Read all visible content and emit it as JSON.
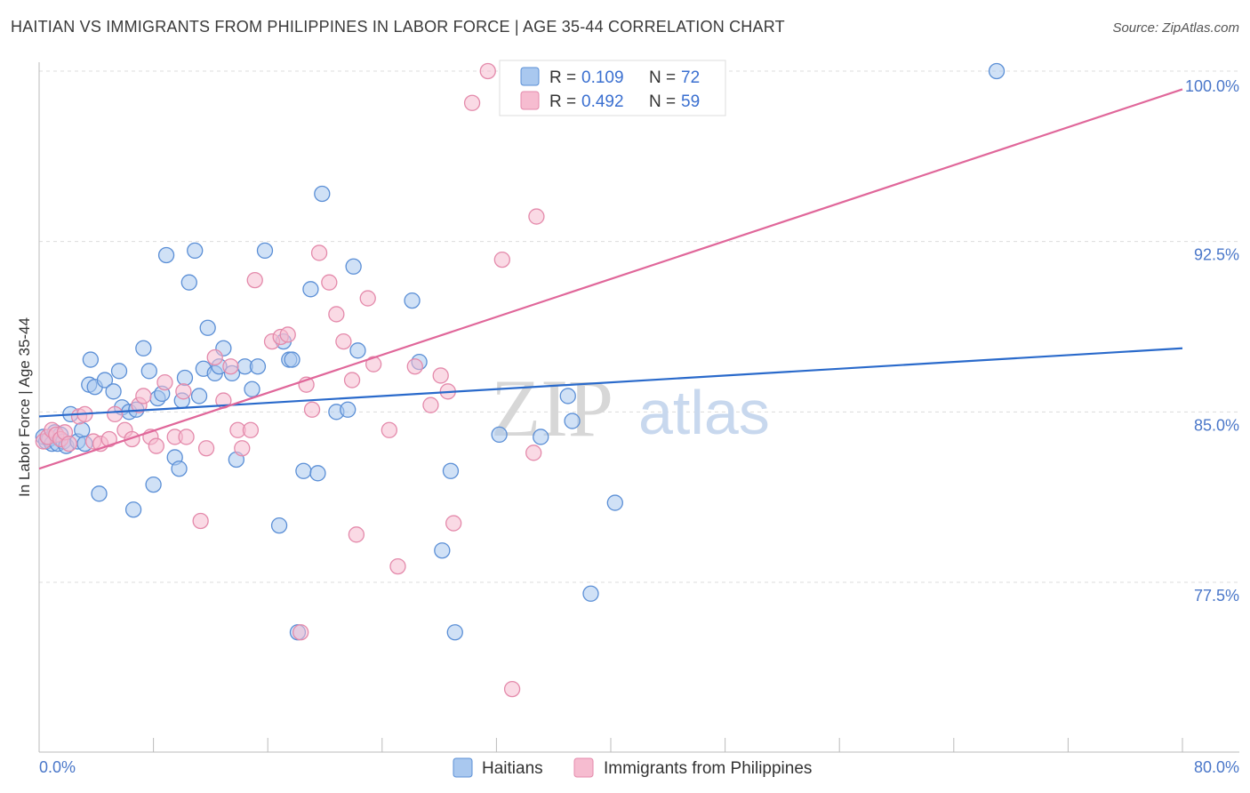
{
  "title": "HAITIAN VS IMMIGRANTS FROM PHILIPPINES IN LABOR FORCE | AGE 35-44 CORRELATION CHART",
  "source": "Source: ZipAtlas.com",
  "watermark": {
    "zip": "ZIP",
    "atlas": "atlas"
  },
  "legend": {
    "r_label": "R =",
    "n_label": "N =",
    "haitians": {
      "r": "0.109",
      "n": "72"
    },
    "philippines": {
      "r": "0.492",
      "n": "59"
    }
  },
  "bottom_legend": {
    "haitians": "Haitians",
    "philippines": "Immigrants from Philippines"
  },
  "colors": {
    "haitians_fill": "#a9c8ef",
    "haitians_stroke": "#5b8fd6",
    "haitians_line": "#2a6acb",
    "philippines_fill": "#f6bcd0",
    "philippines_stroke": "#e48aab",
    "philippines_line": "#e0679a"
  },
  "chart_data": {
    "type": "scatter",
    "xlabel": "",
    "ylabel": "In Labor Force | Age 35-44",
    "xlim": [
      0,
      80
    ],
    "ylim": [
      70,
      100.5
    ],
    "x_ticks_labels": [
      "0.0%",
      "80.0%"
    ],
    "y_ticks": [
      77.5,
      85.0,
      92.5,
      100.0
    ],
    "y_ticks_labels": [
      "77.5%",
      "85.0%",
      "92.5%",
      "100.0%"
    ],
    "grid": true,
    "series": [
      {
        "name": "Haitians",
        "r": 0.109,
        "n": 72,
        "trend": {
          "x": [
            0,
            80
          ],
          "y": [
            84.8,
            87.8
          ]
        },
        "points": [
          [
            0.3,
            83.9
          ],
          [
            0.5,
            83.7
          ],
          [
            0.7,
            83.8
          ],
          [
            0.9,
            83.6
          ],
          [
            1.1,
            84.1
          ],
          [
            1.3,
            83.6
          ],
          [
            1.5,
            84.0
          ],
          [
            1.7,
            83.7
          ],
          [
            1.9,
            83.5
          ],
          [
            2.2,
            84.9
          ],
          [
            2.7,
            83.7
          ],
          [
            3.0,
            84.2
          ],
          [
            3.2,
            83.6
          ],
          [
            3.5,
            86.2
          ],
          [
            3.6,
            87.3
          ],
          [
            3.9,
            86.1
          ],
          [
            4.2,
            81.4
          ],
          [
            4.6,
            86.4
          ],
          [
            5.2,
            85.9
          ],
          [
            5.6,
            86.8
          ],
          [
            5.8,
            85.2
          ],
          [
            6.3,
            85.0
          ],
          [
            6.6,
            80.7
          ],
          [
            6.8,
            85.1
          ],
          [
            7.3,
            87.8
          ],
          [
            7.7,
            86.8
          ],
          [
            8.0,
            81.8
          ],
          [
            8.3,
            85.6
          ],
          [
            8.6,
            85.8
          ],
          [
            8.9,
            91.9
          ],
          [
            9.5,
            83.0
          ],
          [
            9.8,
            82.5
          ],
          [
            10.0,
            85.5
          ],
          [
            10.2,
            86.5
          ],
          [
            10.5,
            90.7
          ],
          [
            10.9,
            92.1
          ],
          [
            11.2,
            85.7
          ],
          [
            11.5,
            86.9
          ],
          [
            11.8,
            88.7
          ],
          [
            12.3,
            86.7
          ],
          [
            12.6,
            87.0
          ],
          [
            12.9,
            87.8
          ],
          [
            13.5,
            86.7
          ],
          [
            13.8,
            82.9
          ],
          [
            14.4,
            87.0
          ],
          [
            14.9,
            86.0
          ],
          [
            15.3,
            87.0
          ],
          [
            15.8,
            92.1
          ],
          [
            16.8,
            80.0
          ],
          [
            17.1,
            88.1
          ],
          [
            17.5,
            87.3
          ],
          [
            17.7,
            87.3
          ],
          [
            18.1,
            75.3
          ],
          [
            18.5,
            82.4
          ],
          [
            19.0,
            90.4
          ],
          [
            19.5,
            82.3
          ],
          [
            19.8,
            94.6
          ],
          [
            20.8,
            85.0
          ],
          [
            21.6,
            85.1
          ],
          [
            22.0,
            91.4
          ],
          [
            22.3,
            87.7
          ],
          [
            26.1,
            89.9
          ],
          [
            26.6,
            87.2
          ],
          [
            28.2,
            78.9
          ],
          [
            28.8,
            82.4
          ],
          [
            29.1,
            75.3
          ],
          [
            32.2,
            84.0
          ],
          [
            35.1,
            83.9
          ],
          [
            37.0,
            85.7
          ],
          [
            37.3,
            84.6
          ],
          [
            38.6,
            77.0
          ],
          [
            40.3,
            81.0
          ],
          [
            67.0,
            100.0
          ]
        ]
      },
      {
        "name": "Immigrants from Philippines",
        "r": 0.492,
        "n": 59,
        "trend": {
          "x": [
            0,
            80
          ],
          "y": [
            82.5,
            99.2
          ]
        },
        "points": [
          [
            0.3,
            83.7
          ],
          [
            0.6,
            83.9
          ],
          [
            0.9,
            84.2
          ],
          [
            1.2,
            84.0
          ],
          [
            1.5,
            83.8
          ],
          [
            1.8,
            84.1
          ],
          [
            2.1,
            83.6
          ],
          [
            2.8,
            84.8
          ],
          [
            3.2,
            84.9
          ],
          [
            3.8,
            83.7
          ],
          [
            4.3,
            83.6
          ],
          [
            4.9,
            83.8
          ],
          [
            5.3,
            84.9
          ],
          [
            6.0,
            84.2
          ],
          [
            6.5,
            83.8
          ],
          [
            7.0,
            85.3
          ],
          [
            7.3,
            85.7
          ],
          [
            7.8,
            83.9
          ],
          [
            8.2,
            83.5
          ],
          [
            8.8,
            86.3
          ],
          [
            9.5,
            83.9
          ],
          [
            10.1,
            85.9
          ],
          [
            10.3,
            83.9
          ],
          [
            11.3,
            80.2
          ],
          [
            11.7,
            83.4
          ],
          [
            12.3,
            87.4
          ],
          [
            12.9,
            85.5
          ],
          [
            13.4,
            87.0
          ],
          [
            13.9,
            84.2
          ],
          [
            14.2,
            83.4
          ],
          [
            14.8,
            84.2
          ],
          [
            15.1,
            90.8
          ],
          [
            16.3,
            88.1
          ],
          [
            16.9,
            88.3
          ],
          [
            17.4,
            88.4
          ],
          [
            18.3,
            75.3
          ],
          [
            18.7,
            86.2
          ],
          [
            19.1,
            85.1
          ],
          [
            19.6,
            92.0
          ],
          [
            20.3,
            90.7
          ],
          [
            20.8,
            89.3
          ],
          [
            21.3,
            88.1
          ],
          [
            21.9,
            86.4
          ],
          [
            22.2,
            79.6
          ],
          [
            23.0,
            90.0
          ],
          [
            23.4,
            87.1
          ],
          [
            24.5,
            84.2
          ],
          [
            25.1,
            78.2
          ],
          [
            26.3,
            87.0
          ],
          [
            27.4,
            85.3
          ],
          [
            28.1,
            86.6
          ],
          [
            28.6,
            85.9
          ],
          [
            29.0,
            80.1
          ],
          [
            30.3,
            98.6
          ],
          [
            31.4,
            100.0
          ],
          [
            32.4,
            91.7
          ],
          [
            33.1,
            72.8
          ],
          [
            34.6,
            83.2
          ],
          [
            34.8,
            93.6
          ]
        ]
      }
    ]
  }
}
